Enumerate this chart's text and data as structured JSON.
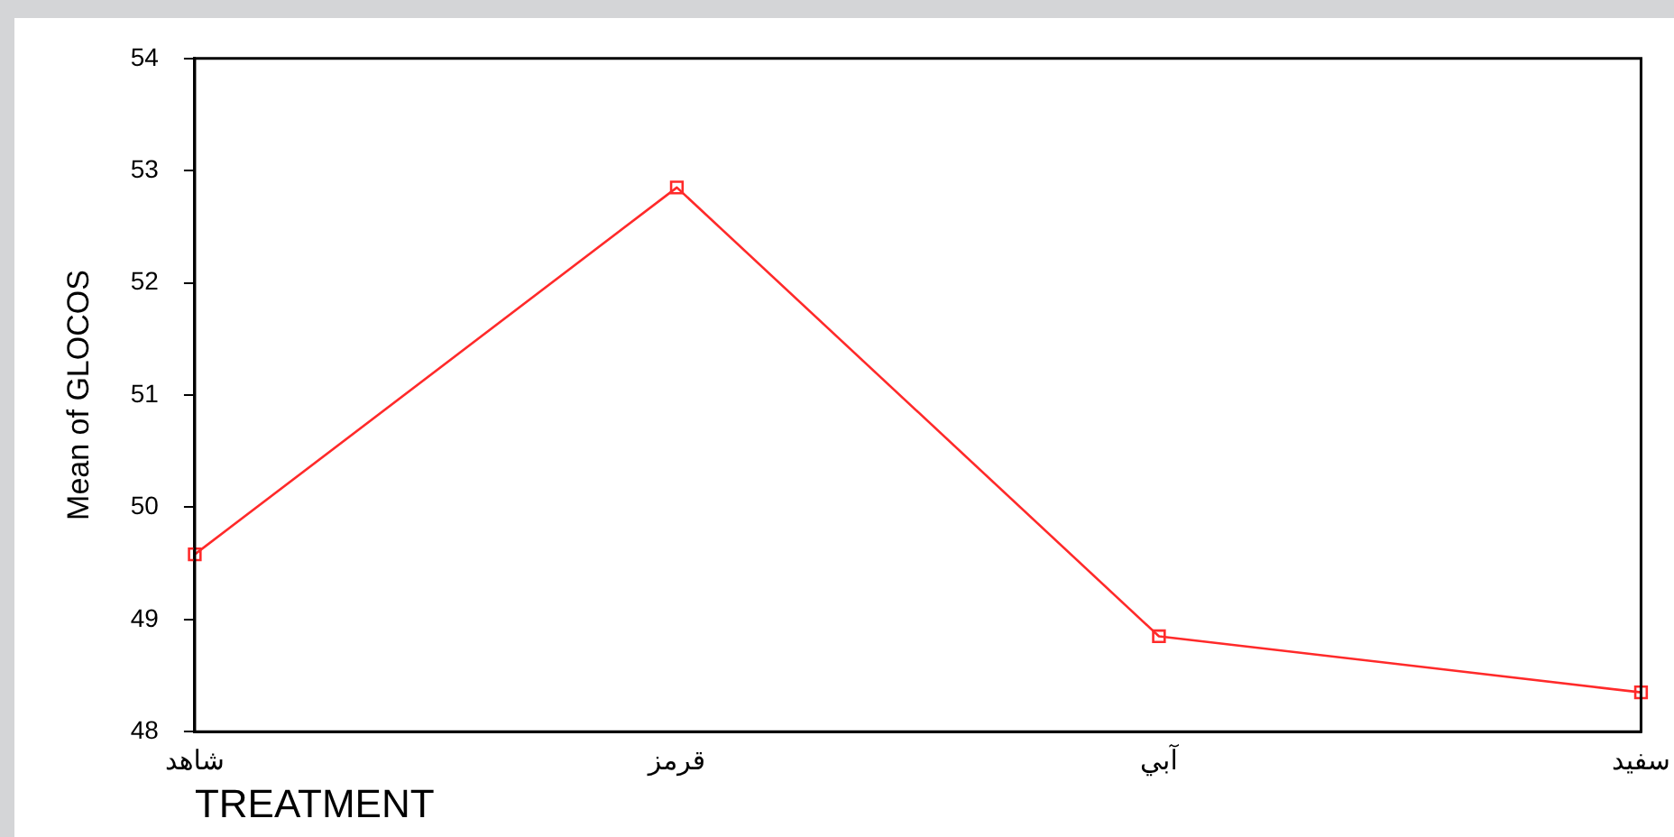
{
  "chart_data": {
    "type": "line",
    "xlabel": "TREATMENT",
    "ylabel": "Mean of GLOCOS",
    "categories": [
      "شاهد",
      "قرمز",
      "آبي",
      "سفيد"
    ],
    "series": [
      {
        "color": "#ff2a2a",
        "values": [
          49.58,
          52.85,
          48.85,
          48.35
        ]
      }
    ],
    "ylim": [
      48,
      54
    ],
    "yticks": [
      48,
      49,
      50,
      51,
      52,
      53,
      54
    ],
    "grid": false,
    "legend": false,
    "marker": "square",
    "line_style": "solid"
  }
}
